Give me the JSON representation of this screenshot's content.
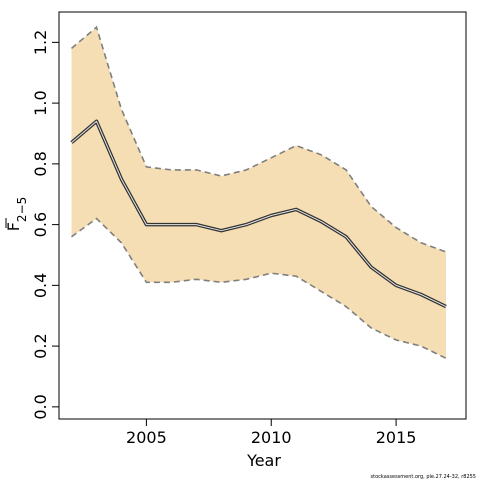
{
  "chart_data": {
    "type": "area",
    "title": "",
    "xlabel": "Year",
    "ylabel": {
      "base": "F",
      "subscript": "2−5"
    },
    "credit": "stockassessment.org, ple.27.24-32, r8255",
    "xlim": [
      2001.5,
      2017.8
    ],
    "ylim": [
      -0.04,
      1.3
    ],
    "x_ticks": [
      2005,
      2010,
      2015
    ],
    "y_ticks": [
      0.0,
      0.2,
      0.4,
      0.6,
      0.8,
      1.0,
      1.2
    ],
    "y_tick_labels": [
      "0.0",
      "0.2",
      "0.4",
      "0.6",
      "0.8",
      "1.0",
      "1.2"
    ],
    "grid": false,
    "legend": "none",
    "colors": {
      "band": "#f5deb3",
      "estimate": "#333333",
      "bounds": "#7f7f7f"
    },
    "x": [
      2002,
      2003,
      2004,
      2005,
      2006,
      2007,
      2008,
      2009,
      2010,
      2011,
      2012,
      2013,
      2014,
      2015,
      2016,
      2017
    ],
    "series": [
      {
        "values": [
          0.87,
          0.94,
          0.75,
          0.6,
          0.6,
          0.6,
          0.58,
          0.6,
          0.63,
          0.65,
          0.61,
          0.56,
          0.46,
          0.4,
          0.37,
          0.33
        ]
      },
      {
        "values": [
          1.18,
          1.25,
          0.98,
          0.79,
          0.78,
          0.78,
          0.76,
          0.78,
          0.82,
          0.86,
          0.83,
          0.78,
          0.66,
          0.59,
          0.54,
          0.51
        ]
      },
      {
        "values": [
          0.56,
          0.62,
          0.54,
          0.41,
          0.41,
          0.42,
          0.41,
          0.42,
          0.44,
          0.43,
          0.38,
          0.33,
          0.26,
          0.22,
          0.2,
          0.16
        ]
      }
    ]
  }
}
